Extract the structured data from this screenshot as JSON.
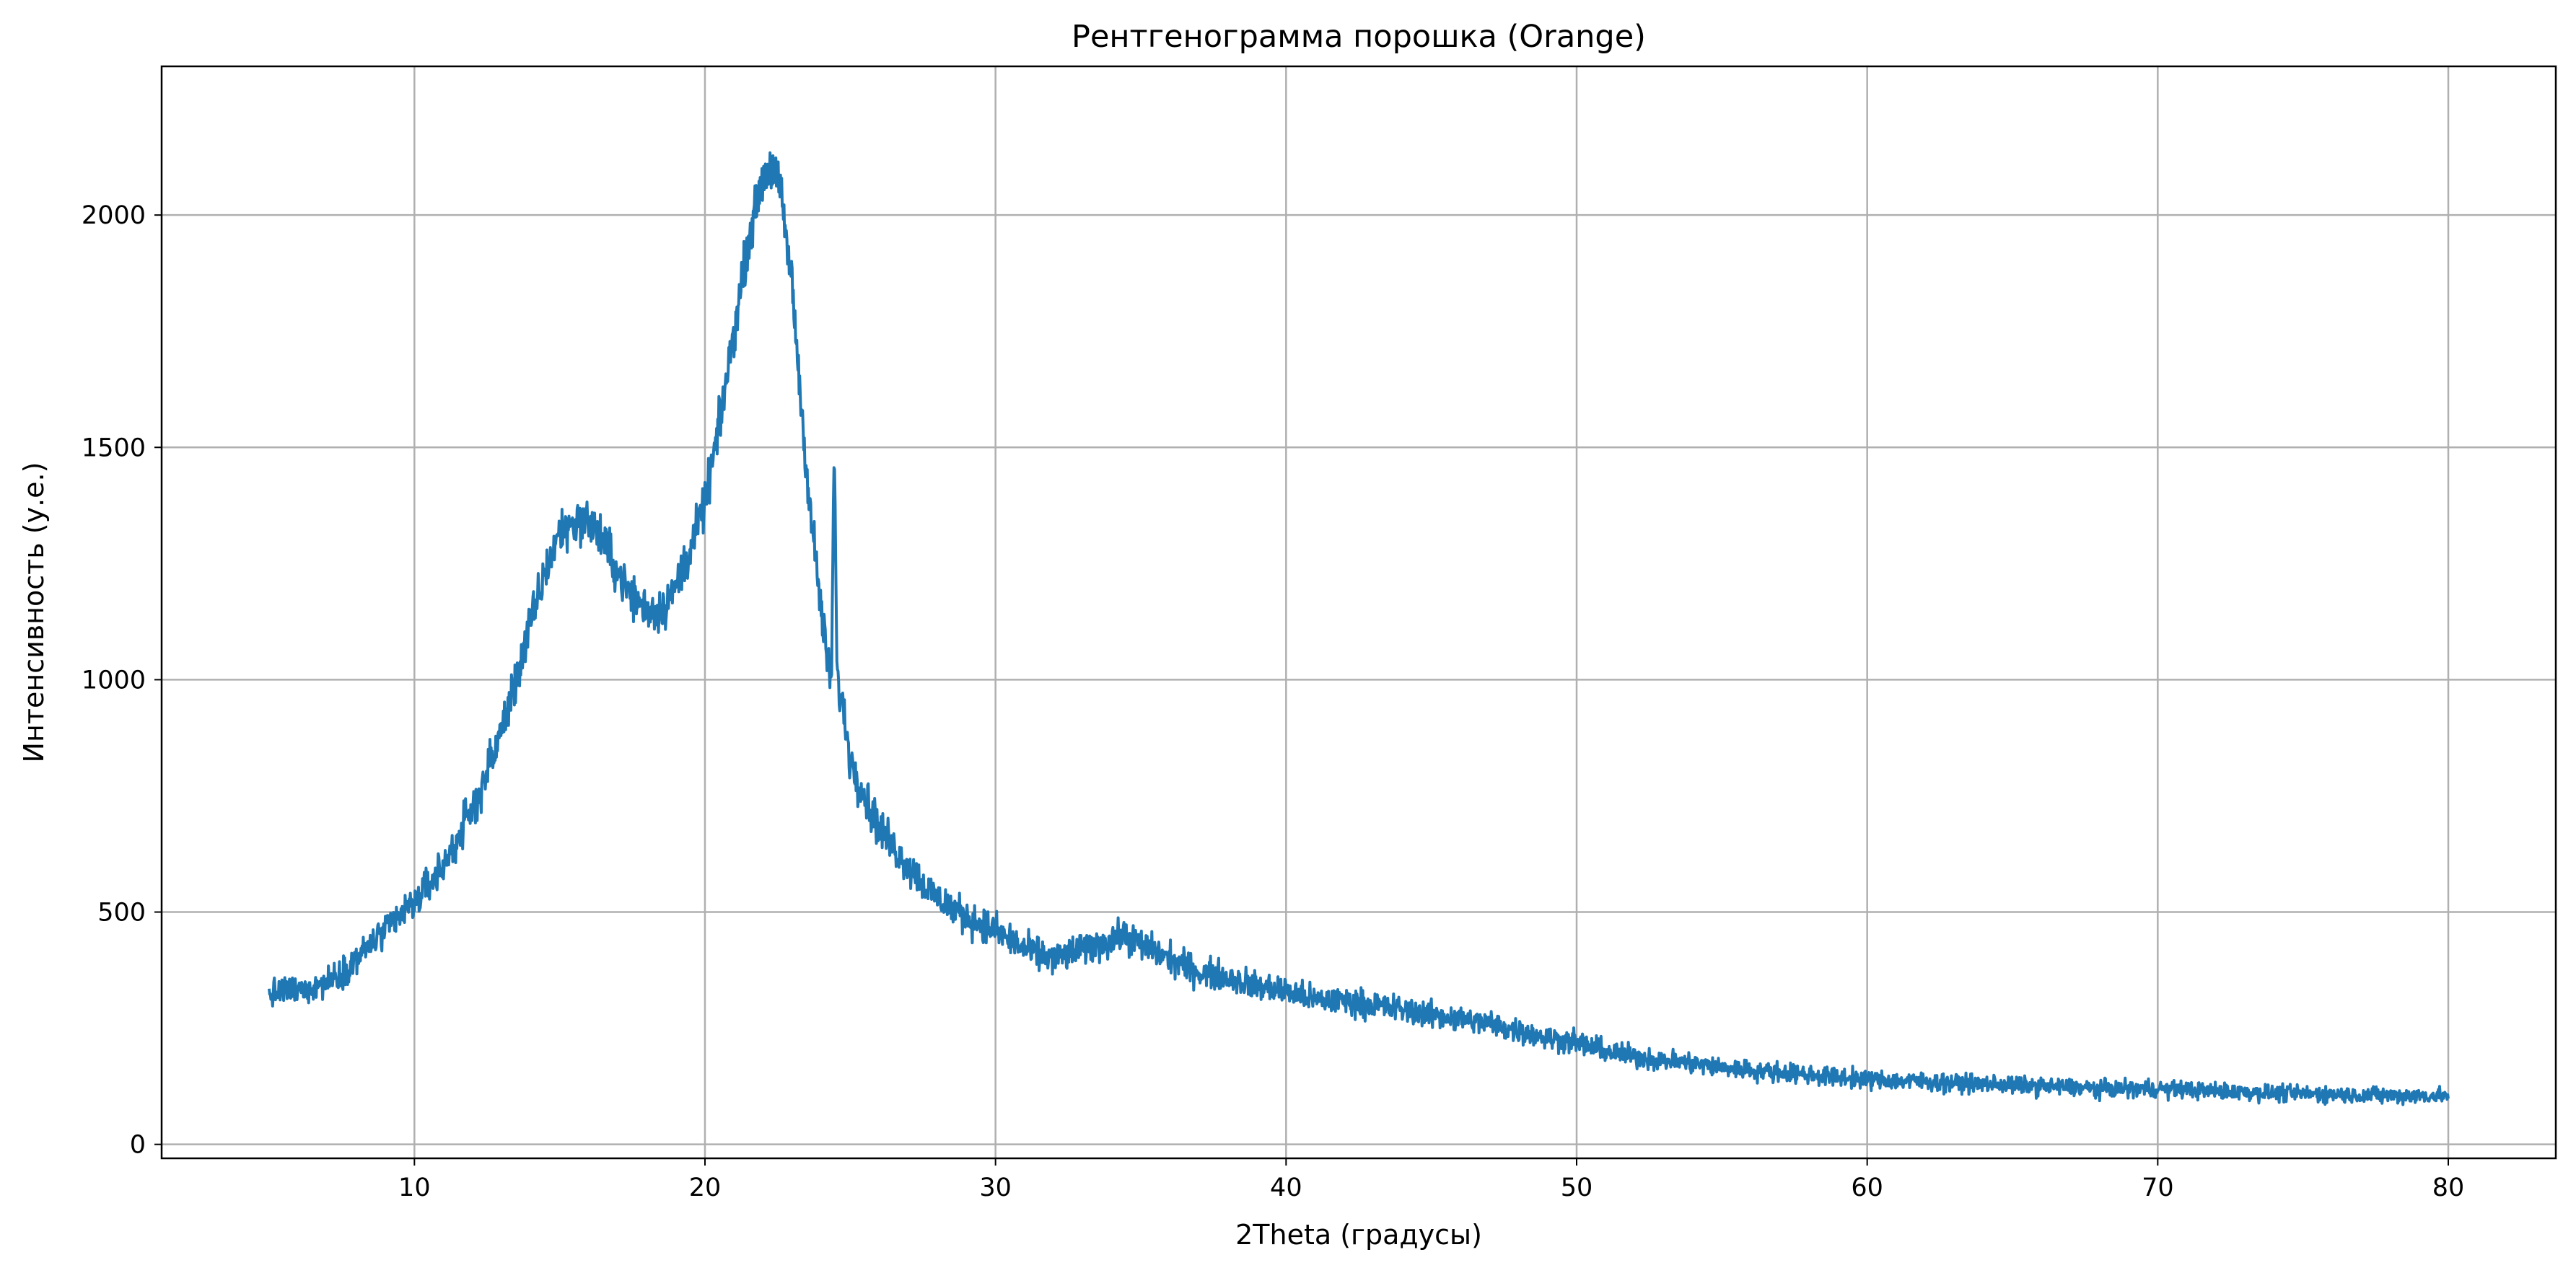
{
  "chart_data": {
    "type": "line",
    "title": "Рентгенограмма порошка (Orange)",
    "xlabel": "2Theta (градусы)",
    "ylabel": "Интенсивность (у.е.)",
    "xlim": [
      1.3,
      83.7
    ],
    "ylim": [
      -30,
      2320
    ],
    "xticks": [
      10,
      20,
      30,
      40,
      50,
      60,
      70,
      80
    ],
    "xtick_labels": [
      "10",
      "20",
      "30",
      "40",
      "50",
      "60",
      "70",
      "80"
    ],
    "yticks": [
      0,
      500,
      1000,
      1500,
      2000
    ],
    "ytick_labels": [
      "0",
      "500",
      "1000",
      "1500",
      "2000"
    ],
    "grid": true,
    "legend": "none",
    "colors": {
      "series": "#1f77b4",
      "grid": "#b0b0b0"
    },
    "series": [
      {
        "noise_amplitude": 30,
        "x": [
          5.0,
          5.5,
          6.0,
          6.5,
          7.0,
          7.5,
          8.0,
          8.5,
          9.0,
          9.5,
          10.0,
          10.5,
          11.0,
          11.5,
          12.0,
          12.5,
          13.0,
          13.5,
          14.0,
          14.5,
          15.0,
          15.5,
          16.0,
          16.5,
          17.0,
          17.5,
          18.0,
          18.5,
          19.0,
          19.5,
          20.0,
          20.5,
          21.0,
          21.5,
          22.0,
          22.3,
          22.6,
          23.0,
          23.3,
          23.6,
          24.0,
          24.2,
          24.35,
          24.45,
          24.55,
          24.75,
          25.0,
          25.5,
          26.0,
          26.5,
          27.0,
          27.5,
          28.0,
          29.0,
          30.0,
          31.0,
          32.0,
          33.0,
          34.0,
          34.5,
          35.0,
          36.0,
          37.0,
          38.0,
          39.0,
          40.0,
          41.0,
          42.0,
          43.0,
          44.0,
          45.0,
          46.0,
          47.0,
          48.0,
          49.0,
          50.0,
          51.0,
          52.0,
          53.0,
          54.0,
          55.0,
          56.0,
          57.0,
          58.0,
          59.0,
          60.0,
          62.0,
          64.0,
          66.0,
          68.0,
          70.0,
          72.0,
          74.0,
          76.0,
          78.0,
          80.0
        ],
        "y": [
          320,
          330,
          330,
          340,
          350,
          370,
          400,
          430,
          460,
          490,
          520,
          560,
          600,
          660,
          720,
          800,
          890,
          1000,
          1120,
          1230,
          1320,
          1340,
          1340,
          1300,
          1230,
          1180,
          1150,
          1150,
          1200,
          1280,
          1380,
          1550,
          1750,
          1950,
          2080,
          2110,
          2050,
          1850,
          1600,
          1380,
          1150,
          1040,
          1000,
          1500,
          1000,
          940,
          830,
          750,
          680,
          640,
          600,
          560,
          530,
          490,
          460,
          420,
          400,
          420,
          440,
          450,
          430,
          400,
          370,
          360,
          340,
          330,
          310,
          310,
          300,
          290,
          280,
          270,
          260,
          245,
          230,
          220,
          200,
          190,
          180,
          175,
          165,
          160,
          155,
          150,
          145,
          140,
          135,
          130,
          125,
          120,
          120,
          115,
          110,
          108,
          105,
          105
        ]
      }
    ]
  }
}
